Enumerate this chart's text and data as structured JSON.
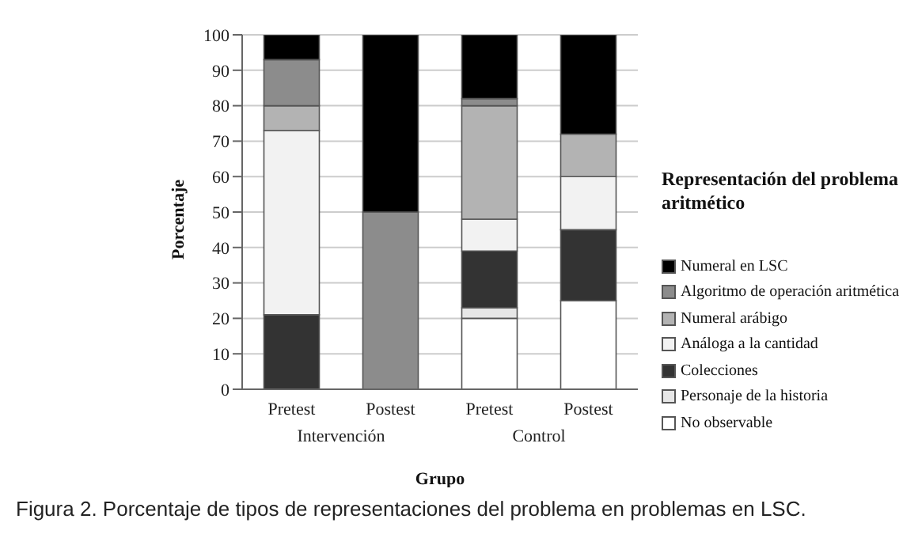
{
  "chart_data": {
    "type": "bar",
    "stacked": true,
    "xlabel": "Grupo",
    "ylabel": "Porcentaje",
    "legend_title": "Representación del problema aritmético",
    "categories": [
      "Pretest",
      "Postest",
      "Pretest",
      "Postest"
    ],
    "series": [
      {
        "name": "No observable",
        "color": "#ffffff",
        "values": [
          0,
          0,
          20,
          25
        ]
      },
      {
        "name": "Personaje de la historia",
        "color": "#e6e6e6",
        "values": [
          0,
          0,
          3,
          0
        ]
      },
      {
        "name": "Colecciones",
        "color": "#333333",
        "values": [
          21,
          0,
          16,
          20
        ]
      },
      {
        "name": "Análoga a la cantidad",
        "color": "#f2f2f2",
        "values": [
          52,
          0,
          9,
          15
        ]
      },
      {
        "name": "Numeral arábigo",
        "color": "#b3b3b3",
        "values": [
          7,
          0,
          32,
          12
        ]
      },
      {
        "name": "Algoritmo de operación aritmética",
        "color": "#8c8c8c",
        "values": [
          13,
          50,
          2,
          0
        ]
      },
      {
        "name": "Numeral en LSC",
        "color": "#000000",
        "values": [
          7,
          50,
          18,
          28
        ]
      }
    ],
    "ylim": [
      0,
      100
    ],
    "yticks": [
      0,
      10,
      20,
      30,
      40,
      50,
      60,
      70,
      80,
      90,
      100
    ],
    "grid": "y",
    "legend": "right",
    "annotations": [
      "Intervención",
      "Control",
      "Figura 2. Porcentaje de tipos de representaciones del problema en problemas en LSC."
    ]
  }
}
